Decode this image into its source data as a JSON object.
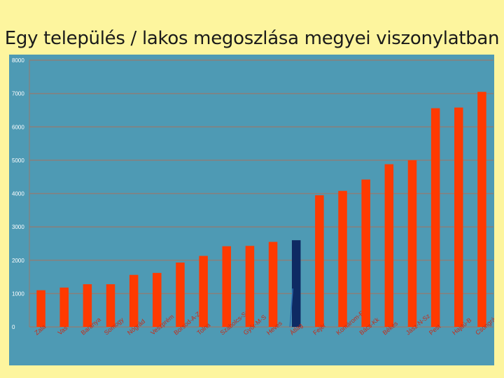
{
  "title": "Egy település / lakos megoszlása megyei viszonylatban",
  "chart_data": {
    "type": "bar",
    "title": "Egy település / lakos megoszlása megyei viszonylatban",
    "xlabel": "",
    "ylabel": "",
    "ylim": [
      0,
      8000
    ],
    "yticks": [
      0,
      1000,
      2000,
      3000,
      4000,
      5000,
      6000,
      7000,
      8000
    ],
    "grid": true,
    "legend": "none",
    "categories": [
      "Zala",
      "Vas",
      "Baranya",
      "Somogy",
      "Nógrád",
      "Veszprém",
      "Borsod-A-Z",
      "Tolna",
      "Szabolcs-Sz-B",
      "Győr-M-S",
      "Heves",
      "Átlag",
      "Fejér",
      "Komárom-E",
      "Bács-Kk",
      "Békés",
      "Jász-N-Sz",
      "Pest",
      "Hajdú-B",
      "Csongrád"
    ],
    "values": [
      1100,
      1180,
      1280,
      1280,
      1560,
      1620,
      1930,
      2130,
      2420,
      2430,
      2550,
      2600,
      3950,
      4080,
      4420,
      4880,
      5000,
      6560,
      6580,
      7050
    ],
    "highlight_category": "Átlag",
    "colors": {
      "bar": "#FF3A00",
      "highlight": "#0E2A63",
      "plot_bg": "#4E9AB4",
      "grid": "#8A7F7A",
      "label": "#C82A16",
      "page_bg": "#FDF59E"
    }
  }
}
